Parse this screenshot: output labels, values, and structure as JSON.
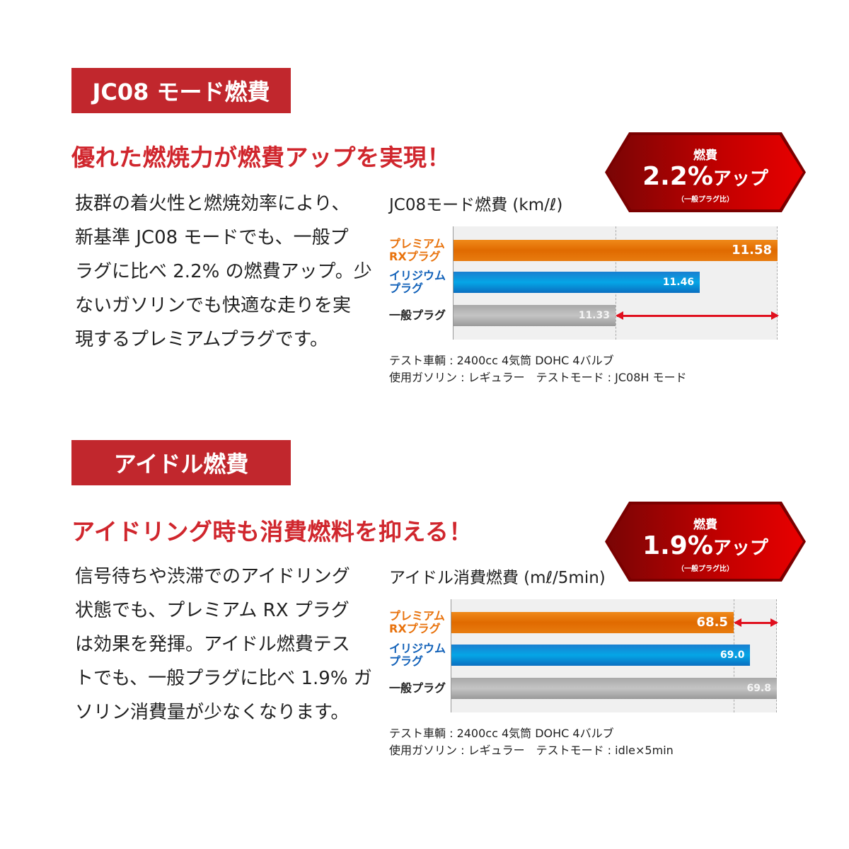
{
  "sections": [
    {
      "heading": "JC08 モード燃費",
      "subheading": "優れた燃焼力が燃費アップを実現！",
      "body_lines": [
        "抜群の着火性と燃焼効率により、",
        "新基準 JC08 モードでも、一般プ",
        "ラグに比べ 2.2% の燃費アップ。少",
        "ないガソリンでも快適な走りを実",
        "現するプレミアムプラグです。"
      ],
      "badge": {
        "top": "燃費",
        "value": "2.2%",
        "suffix": "アップ",
        "note": "（一般プラグ比）"
      },
      "notes": [
        "テスト車輌 : 2400cc 4気筒 DOHC 4バルブ",
        "使用ガソリン : レギュラー　テストモード : JC08H モード"
      ]
    },
    {
      "heading": "アイドル燃費",
      "subheading": "アイドリング時も消費燃料を抑える！",
      "body_lines": [
        "信号待ちや渋滞でのアイドリング",
        "状態でも、プレミアム RX プラグ",
        "は効果を発揮。アイドル燃費テス",
        "トでも、一般プラグに比べ 1.9% ガ",
        "ソリン消費量が少なくなります。"
      ],
      "badge": {
        "top": "燃費",
        "value": "1.9%",
        "suffix": "アップ",
        "note": "（一般プラグ比）"
      },
      "notes": [
        "テスト車輌 : 2400cc 4気筒 DOHC 4バルブ",
        "使用ガソリン : レギュラー　テストモード : idle×5min"
      ]
    }
  ],
  "colors": {
    "heading_bg": "#c1272d",
    "accent_red": "#d0262d",
    "premium": "#e8720c",
    "iridium": "#0a9ee0",
    "standard": "#b8b8b8",
    "arrow": "#e0101e"
  },
  "chart_data": [
    {
      "type": "bar",
      "orientation": "horizontal",
      "title": "JC08モード燃費 (km/ℓ)",
      "categories": [
        "プレミアム\nRXプラグ",
        "イリジウム\nプラグ",
        "一般プラグ"
      ],
      "category_lines": [
        [
          "プレミアム",
          "RXプラグ"
        ],
        [
          "イリジウム",
          "プラグ"
        ],
        [
          "一般プラグ"
        ]
      ],
      "values": [
        11.58,
        11.46,
        11.33
      ],
      "value_labels": [
        "11.58",
        "11.46",
        "11.33"
      ],
      "xlim": [
        11.08,
        11.58
      ],
      "reference_value": 11.33,
      "difference_arrow": [
        11.33,
        11.58
      ],
      "grid": false
    },
    {
      "type": "bar",
      "orientation": "horizontal",
      "title": "アイドル消費燃費 (mℓ/5min)",
      "categories": [
        "プレミアム\nRXプラグ",
        "イリジウム\nプラグ",
        "一般プラグ"
      ],
      "category_lines": [
        [
          "プレミアム",
          "RXプラグ"
        ],
        [
          "イリジウム",
          "プラグ"
        ],
        [
          "一般プラグ"
        ]
      ],
      "values": [
        68.5,
        69.0,
        69.8
      ],
      "value_labels": [
        "68.5",
        "69.0",
        "69.8"
      ],
      "xlim": [
        60,
        69.8
      ],
      "reference_value": 68.5,
      "difference_arrow": [
        68.5,
        69.8
      ],
      "grid": false
    }
  ]
}
